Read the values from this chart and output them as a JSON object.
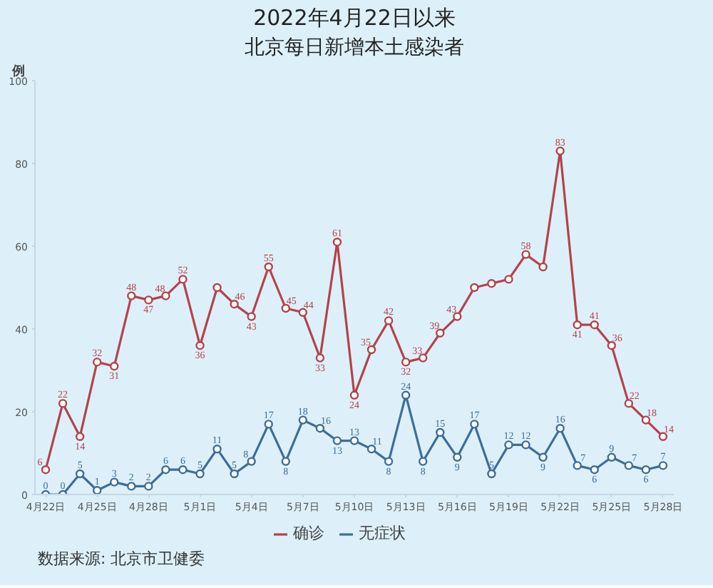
{
  "chart_data": {
    "type": "line",
    "title": "2022年4月22日以来",
    "subtitle": "北京每日新增本土感染者",
    "ylabel": "例",
    "annotations": [
      "数据来源: 北京市卫健委"
    ],
    "x": [
      "2022-04-22",
      "2022-04-23",
      "2022-04-24",
      "2022-04-25",
      "2022-04-26",
      "2022-04-27",
      "2022-04-28",
      "2022-04-29",
      "2022-04-30",
      "2022-05-01",
      "2022-05-02",
      "2022-05-03",
      "2022-05-04",
      "2022-05-05",
      "2022-05-06",
      "2022-05-07",
      "2022-05-08",
      "2022-05-09",
      "2022-05-10",
      "2022-05-11",
      "2022-05-12",
      "2022-05-13",
      "2022-05-14",
      "2022-05-15",
      "2022-05-16",
      "2022-05-17",
      "2022-05-18",
      "2022-05-19",
      "2022-05-20",
      "2022-05-21",
      "2022-05-22",
      "2022-05-23",
      "2022-05-24",
      "2022-05-25",
      "2022-05-26",
      "2022-05-27",
      "2022-05-28"
    ],
    "series": [
      {
        "name": "确诊",
        "color": "#b5424a",
        "values": [
          6,
          22,
          14,
          32,
          31,
          48,
          47,
          48,
          52,
          36,
          50,
          46,
          43,
          55,
          45,
          44,
          33,
          61,
          24,
          35,
          42,
          32,
          33,
          39,
          43,
          50,
          51,
          52,
          58,
          55,
          83,
          41,
          41,
          36,
          22,
          18,
          14
        ],
        "value_labels": [
          "6",
          "22",
          "14",
          "32",
          "31",
          "48",
          "47",
          "48",
          "52",
          "36",
          null,
          "46",
          "43",
          "55",
          "45",
          "44",
          "33",
          "61",
          "24",
          "35",
          "42",
          "32",
          "33",
          "39",
          "43",
          null,
          null,
          null,
          "58",
          null,
          "83",
          "41",
          "41",
          "36",
          "22",
          "18",
          "14"
        ]
      },
      {
        "name": "无症状",
        "color": "#3d6d99",
        "values": [
          0,
          0,
          5,
          1,
          3,
          2,
          2,
          6,
          6,
          5,
          11,
          5,
          8,
          17,
          8,
          18,
          16,
          13,
          13,
          11,
          8,
          24,
          8,
          15,
          9,
          17,
          5,
          12,
          12,
          9,
          16,
          7,
          6,
          9,
          7,
          6,
          7
        ],
        "value_labels": [
          "0",
          "0",
          "5",
          "1",
          "3",
          "2",
          "2",
          "6",
          "6",
          "5",
          "11",
          "5",
          "8",
          "17",
          "8",
          "18",
          "16",
          "13",
          "13",
          "11",
          "8",
          "24",
          "8",
          "15",
          "9",
          "17",
          "5",
          "12",
          "12",
          "9",
          "16",
          "7",
          "6",
          "9",
          "7",
          "6",
          "7"
        ]
      }
    ],
    "xlim": [
      "2022-04-21T09:00",
      "2022-05-28T15:00"
    ],
    "xticks": [
      {
        "value": "2022-04-22",
        "label": "4月22日"
      },
      {
        "value": "2022-04-25",
        "label": "4月25日"
      },
      {
        "value": "2022-04-28",
        "label": "4月28日"
      },
      {
        "value": "2022-05-01",
        "label": "5月1日"
      },
      {
        "value": "2022-05-04",
        "label": "5月4日"
      },
      {
        "value": "2022-05-07",
        "label": "5月7日"
      },
      {
        "value": "2022-05-10",
        "label": "5月10日"
      },
      {
        "value": "2022-05-13",
        "label": "5月13日"
      },
      {
        "value": "2022-05-16",
        "label": "5月16日"
      },
      {
        "value": "2022-05-19",
        "label": "5月19日"
      },
      {
        "value": "2022-05-22",
        "label": "5月22日"
      },
      {
        "value": "2022-05-25",
        "label": "5月25日"
      },
      {
        "value": "2022-05-28",
        "label": "5月28日"
      }
    ],
    "ylim": [
      0,
      100
    ],
    "yticks": [
      0,
      20,
      40,
      60,
      80,
      100
    ],
    "grid": false,
    "legend": "bottom",
    "marker": "circle",
    "line_style": "solid"
  }
}
